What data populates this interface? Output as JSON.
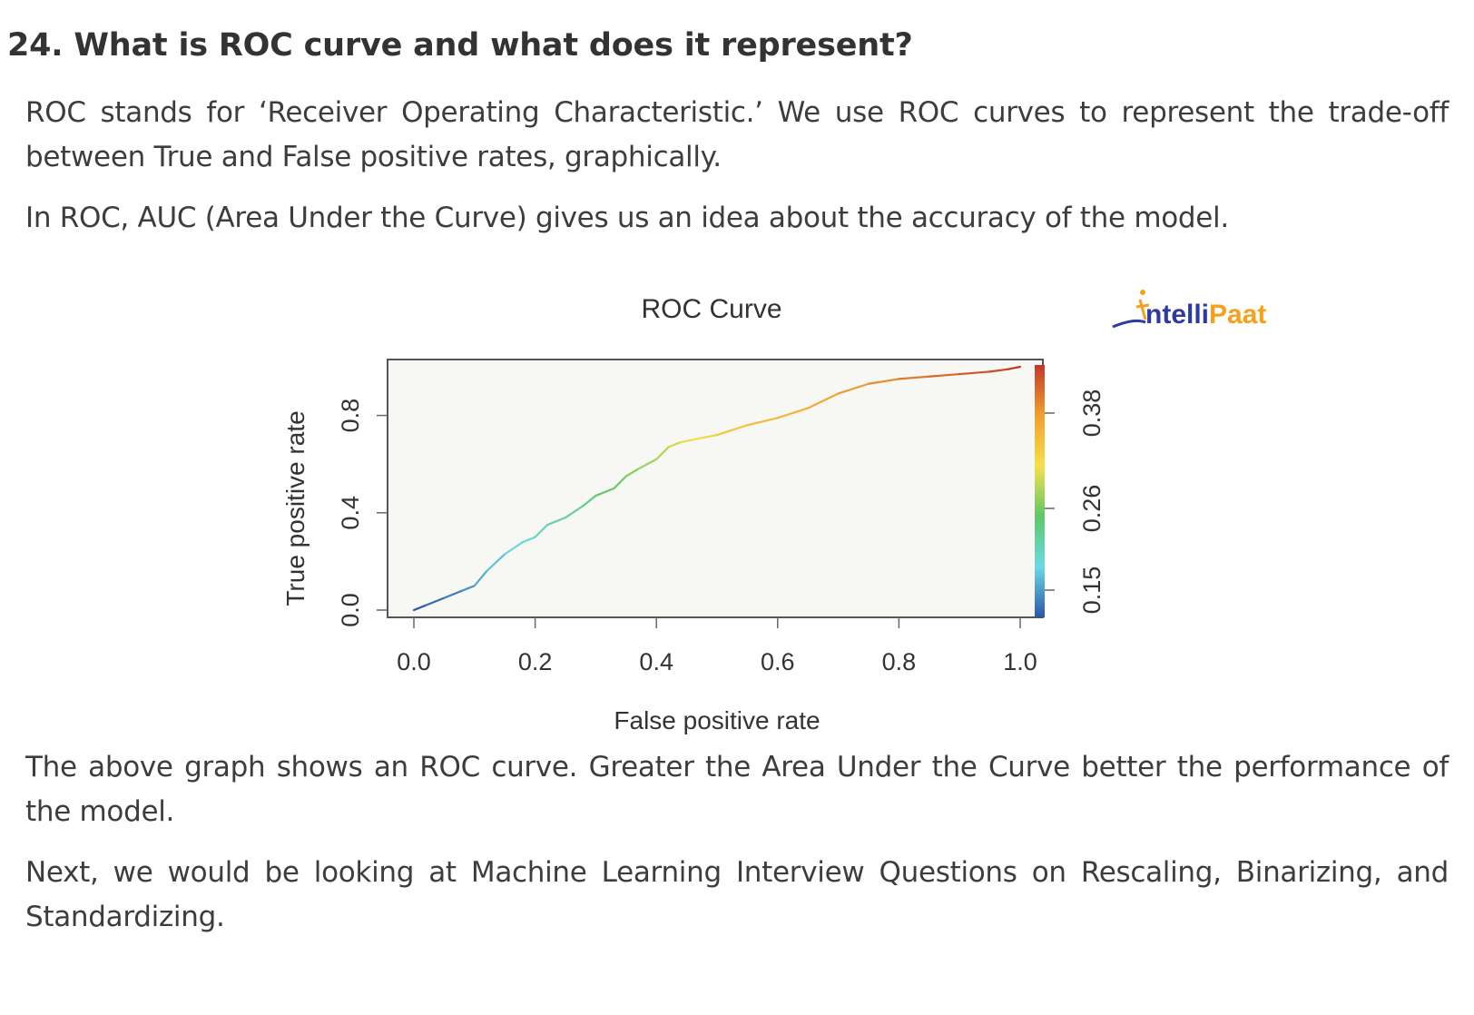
{
  "question": "24. What is ROC curve and what does it represent?",
  "paragraphs": {
    "p1": "ROC stands for ‘Receiver Operating Characteristic.’ We use ROC curves to represent the trade-off between True and False positive rates, graphically.",
    "p2": "In ROC, AUC (Area Under the Curve) gives us an idea about the accuracy of the model.",
    "p3": "The above graph shows an ROC curve. Greater the Area Under the Curve better the performance of the model.",
    "p4": "Next, we would be looking at Machine Learning Interview Questions on Rescaling, Binarizing, and Standardizing."
  },
  "logo": {
    "text_a": "ntelli",
    "text_b": "Paat",
    "color_a": "#2f3aa0",
    "color_b": "#f5a21a"
  },
  "chart_data": {
    "type": "line",
    "title": "ROC Curve",
    "xlabel": "False positive rate",
    "ylabel": "True positive rate",
    "xlim": [
      0,
      1
    ],
    "ylim": [
      0,
      1
    ],
    "x_ticks": [
      "0.0",
      "0.2",
      "0.4",
      "0.6",
      "0.8",
      "1.0"
    ],
    "y_ticks": [
      "0.0",
      "0.4",
      "0.8"
    ],
    "colorbar": {
      "ticks": [
        "0.15",
        "0.26",
        "0.38"
      ],
      "colors": [
        "#2c55a8",
        "#6ed8e6",
        "#5fc76a",
        "#f5e04a",
        "#f0a030",
        "#c0392b"
      ]
    },
    "grid": false,
    "legend": "none",
    "series": [
      {
        "x": [
          0.0,
          0.02,
          0.05,
          0.08,
          0.1,
          0.12,
          0.15,
          0.18,
          0.2,
          0.22,
          0.25,
          0.28,
          0.3,
          0.33,
          0.35,
          0.37,
          0.4,
          0.42,
          0.44,
          0.46,
          0.48,
          0.5,
          0.55,
          0.6,
          0.65,
          0.7,
          0.75,
          0.8,
          0.85,
          0.9,
          0.95,
          0.98,
          1.0
        ],
        "y": [
          0.0,
          0.02,
          0.05,
          0.08,
          0.1,
          0.16,
          0.23,
          0.28,
          0.3,
          0.35,
          0.38,
          0.43,
          0.47,
          0.5,
          0.55,
          0.58,
          0.62,
          0.67,
          0.69,
          0.7,
          0.71,
          0.72,
          0.76,
          0.79,
          0.83,
          0.89,
          0.93,
          0.95,
          0.96,
          0.97,
          0.98,
          0.99,
          1.0
        ]
      }
    ]
  }
}
